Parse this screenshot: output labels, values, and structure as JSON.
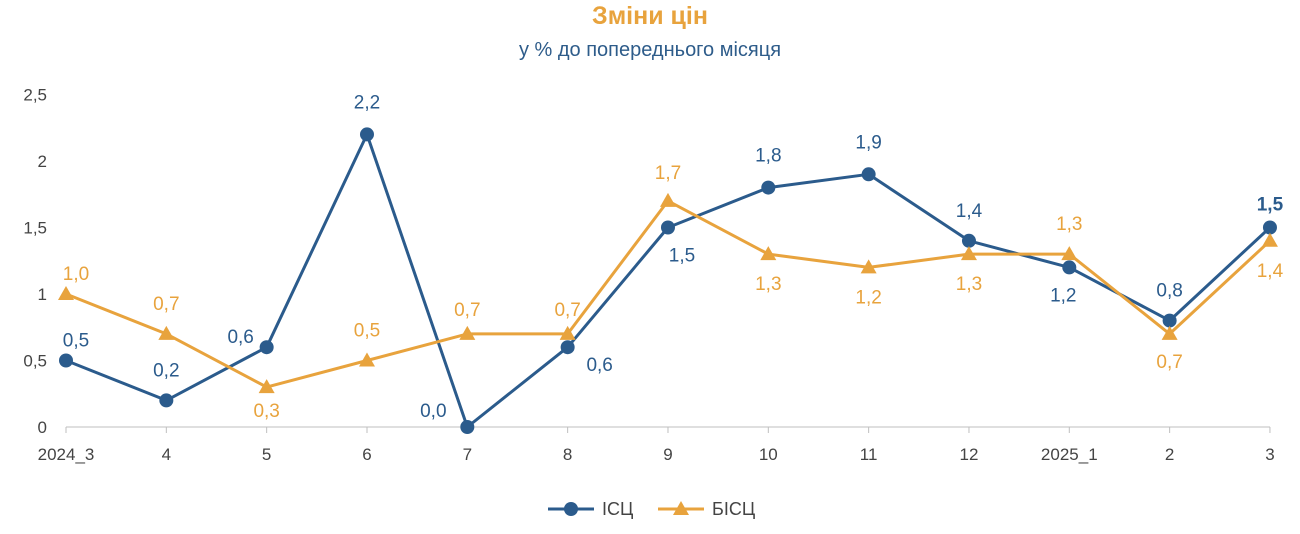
{
  "chart_data": {
    "type": "line",
    "title": "Зміни цін",
    "subtitle": "у % до попереднього місяця",
    "categories": [
      "2024_3",
      "4",
      "5",
      "6",
      "7",
      "8",
      "9",
      "10",
      "11",
      "12",
      "2025_1",
      "2",
      "3"
    ],
    "y_ticks": [
      "0",
      "0,5",
      "1",
      "1,5",
      "2",
      "2,5"
    ],
    "ylim": [
      0,
      2.5
    ],
    "grid": false,
    "legend_position": "bottom",
    "series": [
      {
        "name": "ІСЦ",
        "color": "#2B5B8C",
        "marker": "circle",
        "values": [
          0.5,
          0.2,
          0.6,
          2.2,
          0.0,
          0.6,
          1.5,
          1.8,
          1.9,
          1.4,
          1.2,
          0.8,
          1.5
        ],
        "labels": [
          "0,5",
          "0,2",
          "0,6",
          "2,2",
          "0,0",
          "0,6",
          "1,5",
          "1,8",
          "1,9",
          "1,4",
          "1,2",
          "0,8",
          "1,5"
        ]
      },
      {
        "name": "БІСЦ",
        "color": "#E8A33D",
        "marker": "triangle",
        "values": [
          1.0,
          0.7,
          0.3,
          0.5,
          0.7,
          0.7,
          1.7,
          1.3,
          1.2,
          1.3,
          1.3,
          0.7,
          1.4
        ],
        "labels": [
          "1,0",
          "0,7",
          "0,3",
          "0,5",
          "0,7",
          "0,7",
          "1,7",
          "1,3",
          "1,2",
          "1,3",
          "1,3",
          "0,7",
          "1,4"
        ]
      }
    ]
  }
}
